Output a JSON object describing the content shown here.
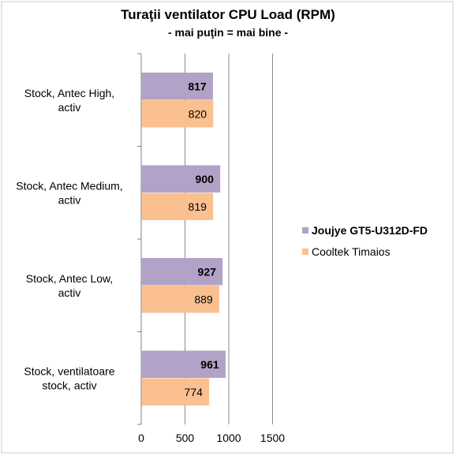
{
  "chart_data": {
    "type": "bar",
    "orientation": "horizontal",
    "title": "Turaţii ventilator CPU Load (RPM)",
    "subtitle": "- mai puţin = mai bine -",
    "categories": [
      [
        "Stock, Antec High,",
        "activ"
      ],
      [
        "Stock, Antec Medium,",
        "activ"
      ],
      [
        "Stock, Antec Low,",
        "activ"
      ],
      [
        "Stock, ventilatoare",
        "stock, activ"
      ]
    ],
    "series": [
      {
        "name": "Joujye GT5-U312D-FD",
        "values": [
          817,
          900,
          927,
          961
        ],
        "color": "#b3a2c7",
        "label_bold": true
      },
      {
        "name": "Cooltek Timaios",
        "values": [
          820,
          819,
          889,
          774
        ],
        "color": "#fac090",
        "label_bold": false
      }
    ],
    "xlim": [
      0,
      1500
    ],
    "xticks": [
      "0",
      "500",
      "1000",
      "1500"
    ],
    "grid": true,
    "legend_position": "right"
  }
}
